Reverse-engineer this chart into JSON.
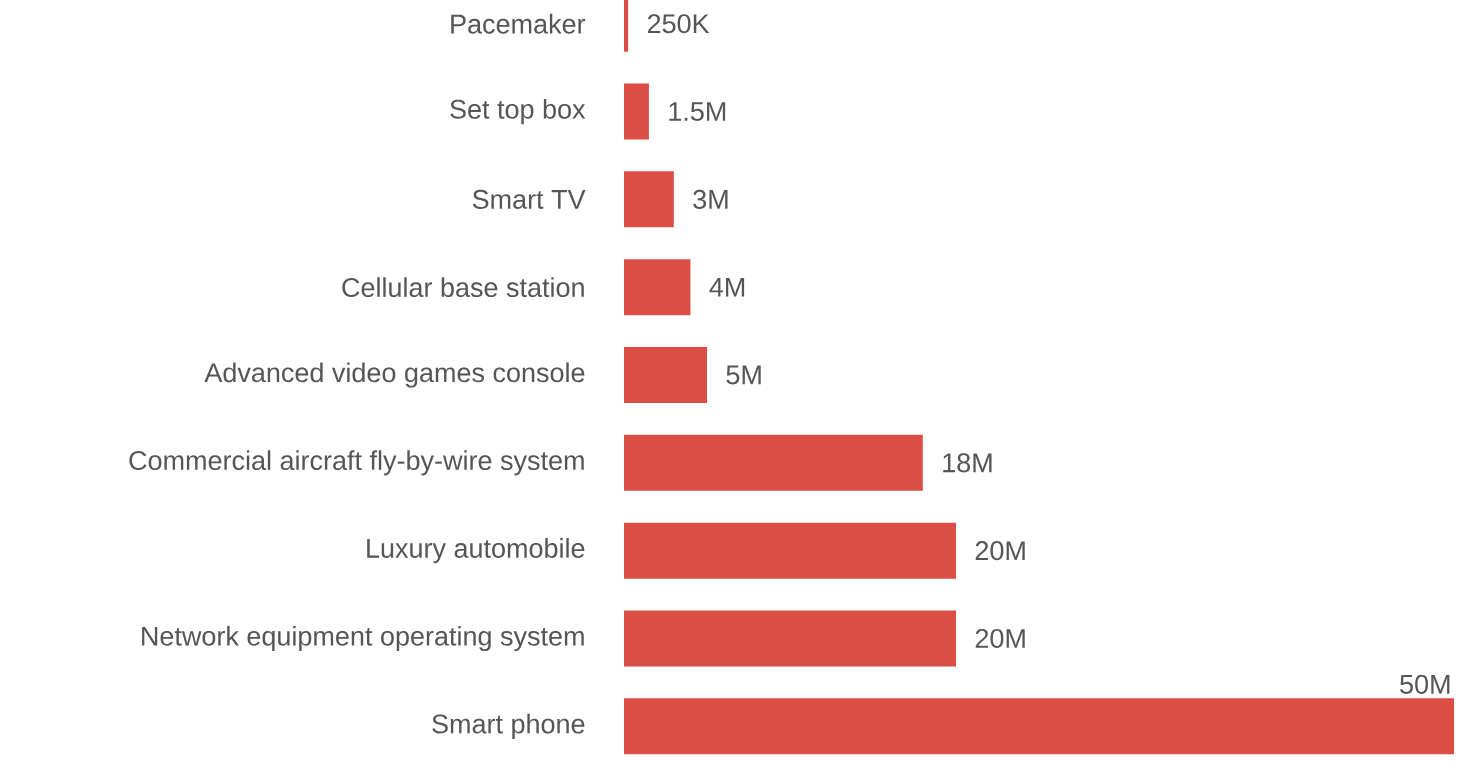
{
  "chart_data": {
    "type": "bar",
    "orientation": "horizontal",
    "categories": [
      "Pacemaker",
      "Set top box",
      "Smart TV",
      "Cellular base station",
      "Advanced video games console",
      "Commercial aircraft fly-by-wire system",
      "Luxury automobile",
      "Network equipment operating system",
      "Smart phone"
    ],
    "values": [
      250000,
      1500000,
      3000000,
      4000000,
      5000000,
      18000000,
      20000000,
      20000000,
      50000000
    ],
    "value_labels": [
      "250K",
      "1.5M",
      "3M",
      "4M",
      "5M",
      "18M",
      "20M",
      "20M",
      "50M"
    ],
    "color": "#dc4d43"
  }
}
